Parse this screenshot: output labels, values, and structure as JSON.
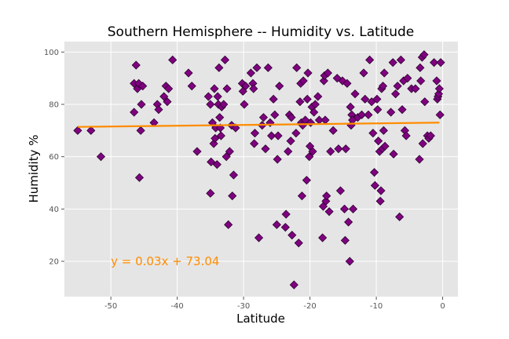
{
  "chart_data": {
    "type": "scatter",
    "title": "Southern Hemisphere -- Humidity vs. Latitude",
    "xlabel": "Latitude",
    "ylabel": "Humidity %",
    "xlim": [
      -57,
      2.3
    ],
    "ylim": [
      6.5,
      104
    ],
    "xticks": [
      -50,
      -40,
      -30,
      -20,
      -10,
      0
    ],
    "yticks": [
      20,
      40,
      60,
      80,
      100
    ],
    "grid": true,
    "colors": {
      "background": "#E5E5E5",
      "grid": "#FFFFFF",
      "marker_fill": "#800080",
      "marker_edge": "#2b0030",
      "regression_line": "#FF8C00",
      "annotation": "#FF8C00"
    },
    "regression": {
      "slope": 0.03,
      "intercept": 73.04,
      "x_range": [
        -55,
        -0.5
      ]
    },
    "annotation": {
      "text": "y = 0.03x + 73.04",
      "x": -50,
      "y": 20
    },
    "points": [
      [
        -55,
        70
      ],
      [
        -53,
        70
      ],
      [
        -51.5,
        60
      ],
      [
        -46.5,
        77
      ],
      [
        -46.5,
        88
      ],
      [
        -46.2,
        95
      ],
      [
        -46,
        86
      ],
      [
        -45.8,
        88
      ],
      [
        -45.7,
        52
      ],
      [
        -45.5,
        70
      ],
      [
        -45.4,
        80
      ],
      [
        -45.2,
        87
      ],
      [
        -43.5,
        73
      ],
      [
        -43,
        80
      ],
      [
        -42.8,
        78
      ],
      [
        -42,
        83
      ],
      [
        -41.7,
        87
      ],
      [
        -41.5,
        81
      ],
      [
        -41.3,
        86
      ],
      [
        -40.7,
        97
      ],
      [
        -38.3,
        92
      ],
      [
        -37.8,
        87
      ],
      [
        -37,
        62
      ],
      [
        -35.3,
        83
      ],
      [
        -35,
        80
      ],
      [
        -35,
        46
      ],
      [
        -34.9,
        58
      ],
      [
        -34.7,
        73
      ],
      [
        -34.5,
        65
      ],
      [
        -34.4,
        86
      ],
      [
        -34.3,
        67
      ],
      [
        -34.2,
        71
      ],
      [
        -34,
        57
      ],
      [
        -33.9,
        83
      ],
      [
        -33.8,
        80
      ],
      [
        -33.7,
        94
      ],
      [
        -33.6,
        75
      ],
      [
        -33.5,
        71
      ],
      [
        -33.4,
        68
      ],
      [
        -33.3,
        79
      ],
      [
        -33,
        80
      ],
      [
        -32.8,
        97
      ],
      [
        -32.6,
        60
      ],
      [
        -32.5,
        86
      ],
      [
        -32.3,
        34
      ],
      [
        -32.1,
        62
      ],
      [
        -31.8,
        72
      ],
      [
        -31.7,
        45
      ],
      [
        -31.5,
        53
      ],
      [
        -31.2,
        71
      ],
      [
        -30.2,
        88
      ],
      [
        -30.1,
        85
      ],
      [
        -29.9,
        80
      ],
      [
        -29.7,
        87
      ],
      [
        -28.9,
        92
      ],
      [
        -28.6,
        88
      ],
      [
        -28.5,
        86
      ],
      [
        -28.4,
        65
      ],
      [
        -28.3,
        69
      ],
      [
        -28,
        94
      ],
      [
        -27.7,
        29
      ],
      [
        -27.2,
        72
      ],
      [
        -27,
        75
      ],
      [
        -26.7,
        63
      ],
      [
        -26.3,
        94
      ],
      [
        -26,
        73
      ],
      [
        -25.8,
        68
      ],
      [
        -25.5,
        82
      ],
      [
        -25.3,
        76
      ],
      [
        -25,
        34
      ],
      [
        -24.9,
        59
      ],
      [
        -24.8,
        68
      ],
      [
        -24.6,
        87
      ],
      [
        -23.7,
        33
      ],
      [
        -23.6,
        38
      ],
      [
        -23.3,
        62
      ],
      [
        -23.1,
        76
      ],
      [
        -22.9,
        66
      ],
      [
        -22.8,
        75
      ],
      [
        -22.7,
        30
      ],
      [
        -22.4,
        11
      ],
      [
        -22.1,
        69
      ],
      [
        -22,
        94
      ],
      [
        -21.7,
        27
      ],
      [
        -21.5,
        81
      ],
      [
        -21.4,
        88
      ],
      [
        -21.3,
        73
      ],
      [
        -21.2,
        45
      ],
      [
        -21.1,
        72
      ],
      [
        -21,
        89
      ],
      [
        -20.7,
        74
      ],
      [
        -20.5,
        51
      ],
      [
        -20.4,
        82
      ],
      [
        -20.3,
        92
      ],
      [
        -20.1,
        60
      ],
      [
        -20,
        64
      ],
      [
        -19.9,
        73
      ],
      [
        -19.7,
        79
      ],
      [
        -19.6,
        62
      ],
      [
        -19.4,
        77
      ],
      [
        -19.2,
        80
      ],
      [
        -18.8,
        83
      ],
      [
        -18.6,
        74
      ],
      [
        -18.1,
        29
      ],
      [
        -18,
        41
      ],
      [
        -17.9,
        89
      ],
      [
        -17.8,
        91
      ],
      [
        -17.7,
        74
      ],
      [
        -17.6,
        43
      ],
      [
        -17.5,
        45
      ],
      [
        -17.3,
        92
      ],
      [
        -17.1,
        39
      ],
      [
        -16.9,
        62
      ],
      [
        -16.5,
        70
      ],
      [
        -15.9,
        90
      ],
      [
        -15.7,
        63
      ],
      [
        -15.4,
        47
      ],
      [
        -15.1,
        89
      ],
      [
        -14.8,
        40
      ],
      [
        -14.7,
        28
      ],
      [
        -14.6,
        63
      ],
      [
        -14.4,
        88
      ],
      [
        -14.2,
        35
      ],
      [
        -14,
        20
      ],
      [
        -13.9,
        79
      ],
      [
        -13.8,
        72
      ],
      [
        -13.7,
        76
      ],
      [
        -13.6,
        74
      ],
      [
        -13.5,
        40
      ],
      [
        -13.2,
        84
      ],
      [
        -12.8,
        75
      ],
      [
        -12.2,
        76
      ],
      [
        -11.9,
        92
      ],
      [
        -11.7,
        82
      ],
      [
        -11.2,
        76
      ],
      [
        -11,
        97
      ],
      [
        -10.7,
        81
      ],
      [
        -10.5,
        69
      ],
      [
        -10.3,
        54
      ],
      [
        -10.2,
        49
      ],
      [
        -9.9,
        82
      ],
      [
        -9.8,
        78
      ],
      [
        -9.7,
        66
      ],
      [
        -9.5,
        62
      ],
      [
        -9.4,
        43
      ],
      [
        -9.3,
        47
      ],
      [
        -9.2,
        86
      ],
      [
        -9.1,
        63
      ],
      [
        -9,
        87
      ],
      [
        -8.9,
        70
      ],
      [
        -8.8,
        92
      ],
      [
        -8.7,
        64
      ],
      [
        -7.8,
        77
      ],
      [
        -7.5,
        96
      ],
      [
        -7.4,
        61
      ],
      [
        -7.1,
        84
      ],
      [
        -6.8,
        87
      ],
      [
        -6.5,
        37
      ],
      [
        -6.3,
        97
      ],
      [
        -6.1,
        78
      ],
      [
        -5.9,
        89
      ],
      [
        -5.7,
        70
      ],
      [
        -5.5,
        68
      ],
      [
        -5.3,
        90
      ],
      [
        -4.7,
        86
      ],
      [
        -4.1,
        86
      ],
      [
        -3.5,
        59
      ],
      [
        -3.4,
        94
      ],
      [
        -3.3,
        89
      ],
      [
        -3.1,
        98
      ],
      [
        -3,
        65
      ],
      [
        -2.8,
        99
      ],
      [
        -2.7,
        81
      ],
      [
        -2.3,
        68
      ],
      [
        -2.1,
        67
      ],
      [
        -1.8,
        68
      ],
      [
        -1.3,
        96
      ],
      [
        -0.9,
        89
      ],
      [
        -0.8,
        82
      ],
      [
        -0.7,
        83
      ],
      [
        -0.6,
        84
      ],
      [
        -0.5,
        86
      ],
      [
        -0.4,
        76
      ],
      [
        -0.3,
        96
      ]
    ]
  }
}
